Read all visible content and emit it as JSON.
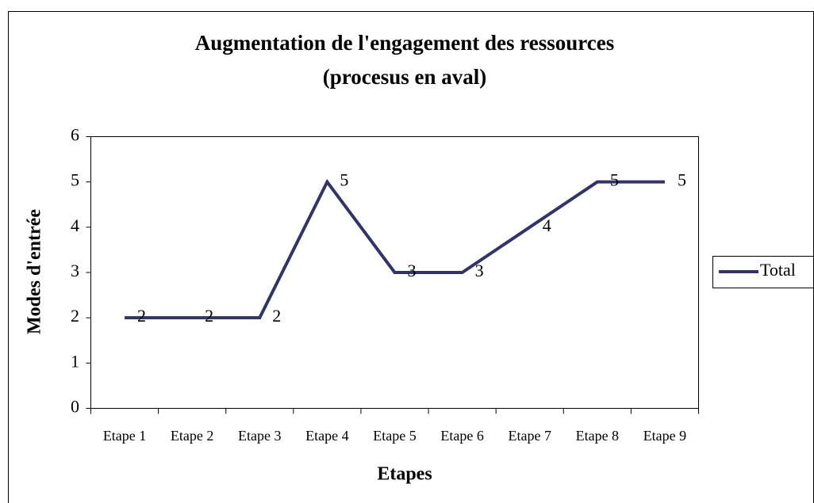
{
  "chart_data": {
    "type": "line",
    "title": "Augmentation de l'engagement des ressources",
    "subtitle": "(procesus en aval)",
    "x_label": "Etapes",
    "y_label": "Modes d'entrée",
    "categories": [
      "Etape 1",
      "Etape 2",
      "Etape 3",
      "Etape 4",
      "Etape 5",
      "Etape 6",
      "Etape 7",
      "Etape 8",
      "Etape 9"
    ],
    "series": [
      {
        "name": "Total",
        "color": "#333366",
        "values": [
          2,
          2,
          2,
          5,
          3,
          3,
          4,
          5,
          5
        ]
      }
    ],
    "ylim": [
      0,
      6
    ],
    "yticks": [
      0,
      1,
      2,
      3,
      4,
      5,
      6
    ],
    "grid": false,
    "legend": "right"
  }
}
